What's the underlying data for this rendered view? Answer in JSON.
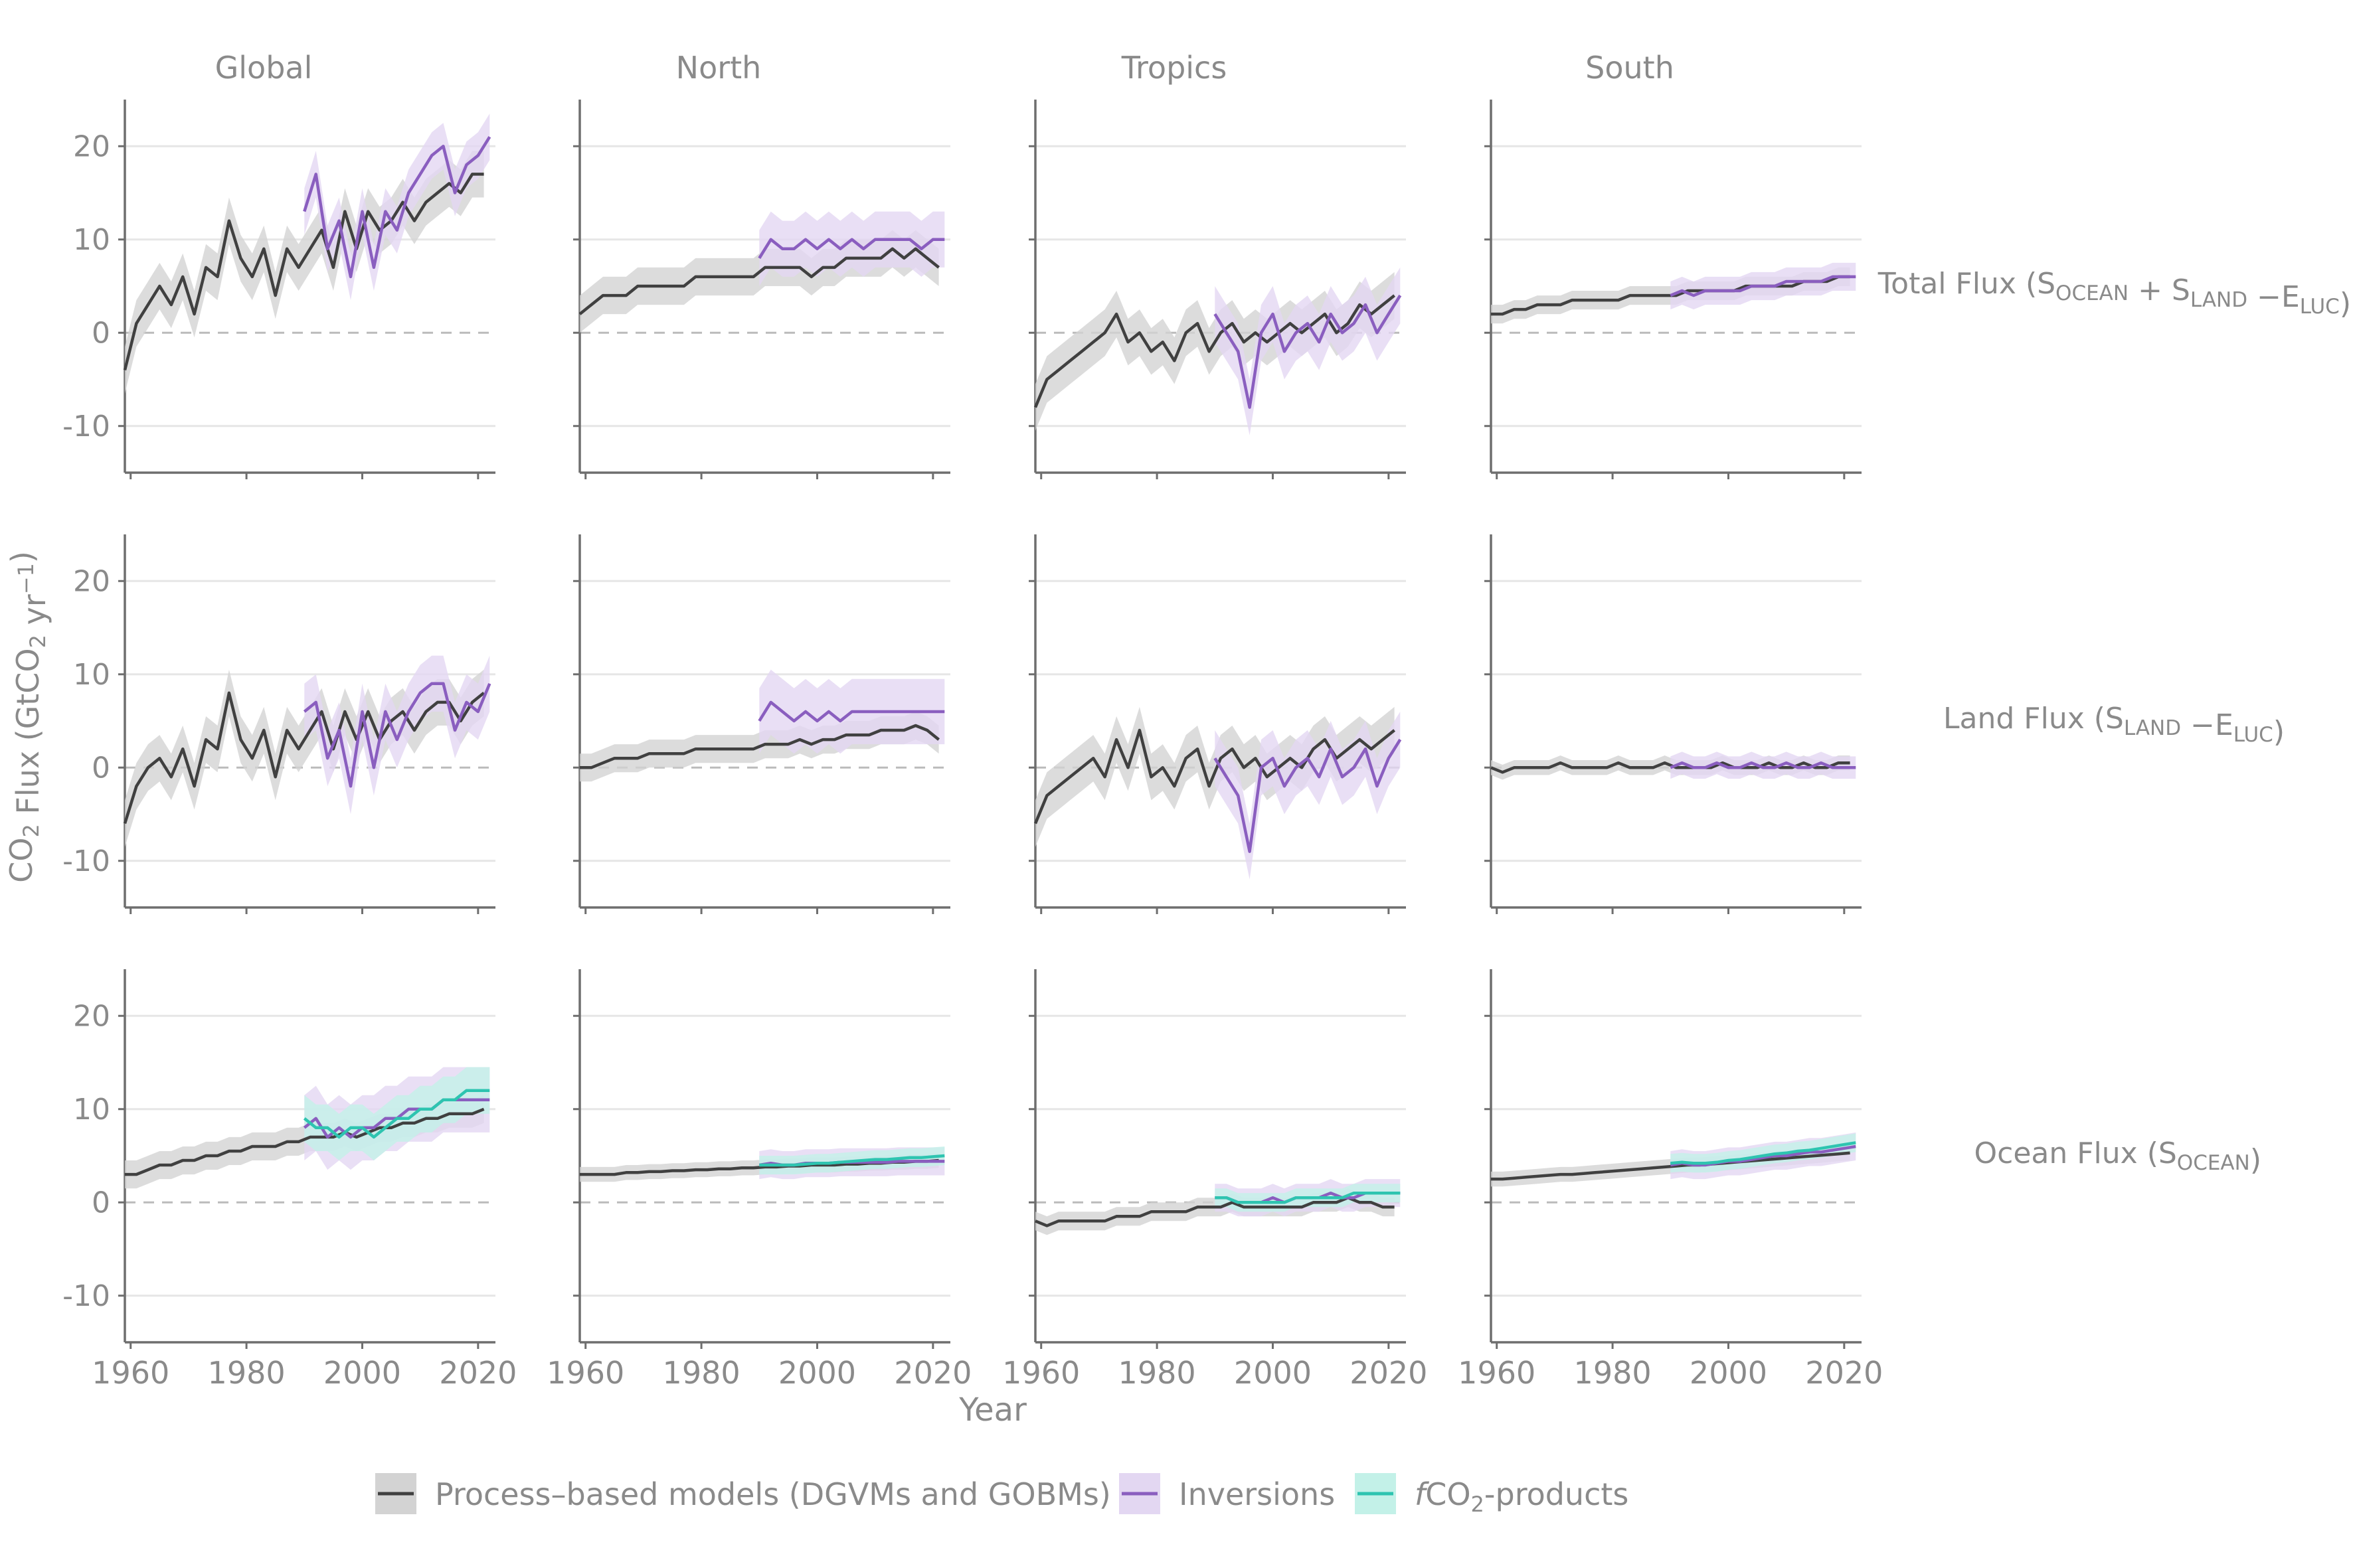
{
  "figure": {
    "column_titles": [
      "Global",
      "North",
      "Tropics",
      "South"
    ],
    "row_labels": [
      {
        "main": "Total Flux (S",
        "sub1": "OCEAN",
        "mid1": " + S",
        "sub2": "LAND",
        "mid2": " −E",
        "sub3": "LUC",
        "end": ")"
      },
      {
        "main": "Land Flux (S",
        "sub1": "LAND",
        "mid1": " −E",
        "sub2": "LUC",
        "end": ")"
      },
      {
        "main": "Ocean Flux (S",
        "sub1": "OCEAN",
        "end": ")"
      }
    ],
    "y_axis_label": {
      "pre": "CO",
      "sub": "2",
      "mid": " Flux (GtCO",
      "sub2": "2",
      "mid2": " yr",
      "sup": "−1",
      "end": ")"
    },
    "x_axis_label": "Year",
    "legend": [
      {
        "key": "process",
        "label": "Process–based models (DGVMs and GOBMs)",
        "color": "#404040",
        "fill": "#d3d3d3"
      },
      {
        "key": "inversions",
        "label": "Inversions",
        "color": "#8a5ebf",
        "fill": "#e3d7f2"
      },
      {
        "key": "fco2",
        "label_italic": "f",
        "label_pre": "CO",
        "label_sub": "2",
        "label_post": "-products",
        "color": "#2ec4b0",
        "fill": "#c3f1e8"
      }
    ]
  },
  "chart_data": {
    "type": "line",
    "layout": "facet-grid 3 rows x 4 columns",
    "x_ticks": [
      1960,
      1980,
      2000,
      2020
    ],
    "y_ticks": [
      20,
      10,
      0,
      -10
    ],
    "y_tick_labels": [
      "20",
      "10",
      "0",
      "-10"
    ],
    "xlim": [
      1959,
      2023
    ],
    "ylim": [
      -15,
      25
    ],
    "zero_line": "dashed",
    "grid": "horizontal major",
    "legend_placement": "bottom",
    "panels": [
      {
        "row": "Total",
        "col": "Global",
        "series": [
          {
            "name": "Process-based models (DGVMs and GOBMs)",
            "x0": 1959,
            "step": 2,
            "band": 2.5,
            "y": [
              -4,
              1,
              3,
              5,
              3,
              6,
              2,
              7,
              6,
              12,
              8,
              6,
              9,
              4,
              9,
              7,
              9,
              11,
              7,
              13,
              9,
              13,
              11,
              12,
              14,
              12,
              14,
              15,
              16,
              15,
              17,
              17
            ]
          },
          {
            "name": "Inversions",
            "x0": 1990,
            "step": 2,
            "band": 2.5,
            "y": [
              13,
              17,
              9,
              12,
              6,
              13,
              7,
              13,
              11,
              15,
              17,
              19,
              20,
              15,
              18,
              19,
              21
            ]
          }
        ]
      },
      {
        "row": "Total",
        "col": "North",
        "series": [
          {
            "name": "Process-based models (DGVMs and GOBMs)",
            "x0": 1959,
            "step": 2,
            "band": 2,
            "y": [
              2,
              3,
              4,
              4,
              4,
              5,
              5,
              5,
              5,
              5,
              6,
              6,
              6,
              6,
              6,
              6,
              7,
              7,
              7,
              7,
              6,
              7,
              7,
              8,
              8,
              8,
              8,
              9,
              8,
              9,
              8,
              7
            ]
          },
          {
            "name": "Inversions",
            "x0": 1990,
            "step": 2,
            "band": 3,
            "y": [
              8,
              10,
              9,
              9,
              10,
              9,
              10,
              9,
              10,
              9,
              10,
              10,
              10,
              10,
              9,
              10,
              10
            ]
          }
        ]
      },
      {
        "row": "Total",
        "col": "Tropics",
        "series": [
          {
            "name": "Process-based models (DGVMs and GOBMs)",
            "x0": 1959,
            "step": 2,
            "band": 2.5,
            "y": [
              -8,
              -5,
              -4,
              -3,
              -2,
              -1,
              0,
              2,
              -1,
              0,
              -2,
              -1,
              -3,
              0,
              1,
              -2,
              0,
              1,
              -1,
              0,
              -1,
              0,
              1,
              0,
              1,
              2,
              0,
              1,
              3,
              2,
              3,
              4
            ]
          },
          {
            "name": "Inversions",
            "x0": 1990,
            "step": 2,
            "band": 3,
            "y": [
              2,
              0,
              -2,
              -8,
              0,
              2,
              -2,
              0,
              1,
              -1,
              2,
              0,
              1,
              3,
              0,
              2,
              4
            ]
          }
        ]
      },
      {
        "row": "Total",
        "col": "South",
        "series": [
          {
            "name": "Process-based models (DGVMs and GOBMs)",
            "x0": 1959,
            "step": 2,
            "band": 1,
            "y": [
              2,
              2,
              2.5,
              2.5,
              3,
              3,
              3,
              3.5,
              3.5,
              3.5,
              3.5,
              3.5,
              4,
              4,
              4,
              4,
              4,
              4.5,
              4.5,
              4.5,
              4.5,
              4.5,
              5,
              5,
              5,
              5,
              5,
              5.5,
              5.5,
              5.5,
              6,
              6
            ]
          },
          {
            "name": "Inversions",
            "x0": 1990,
            "step": 2,
            "band": 1.5,
            "y": [
              4,
              4.5,
              4,
              4.5,
              4.5,
              4.5,
              4.5,
              5,
              5,
              5,
              5.5,
              5.5,
              5.5,
              5.5,
              6,
              6,
              6
            ]
          }
        ]
      },
      {
        "row": "Land",
        "col": "Global",
        "series": [
          {
            "name": "Process-based models (DGVMs and GOBMs)",
            "x0": 1959,
            "step": 2,
            "band": 2.5,
            "y": [
              -6,
              -2,
              0,
              1,
              -1,
              2,
              -2,
              3,
              2,
              8,
              3,
              1,
              4,
              -1,
              4,
              2,
              4,
              6,
              2,
              6,
              3,
              6,
              3,
              5,
              6,
              4,
              6,
              7,
              7,
              5,
              7,
              8
            ]
          },
          {
            "name": "Inversions",
            "x0": 1990,
            "step": 2,
            "band": 3,
            "y": [
              6,
              7,
              1,
              4,
              -2,
              6,
              0,
              6,
              3,
              6,
              8,
              9,
              9,
              4,
              7,
              6,
              9
            ]
          }
        ]
      },
      {
        "row": "Land",
        "col": "North",
        "series": [
          {
            "name": "Process-based models (DGVMs and GOBMs)",
            "x0": 1959,
            "step": 2,
            "band": 1.5,
            "y": [
              0,
              0,
              0.5,
              1,
              1,
              1,
              1.5,
              1.5,
              1.5,
              1.5,
              2,
              2,
              2,
              2,
              2,
              2,
              2.5,
              2.5,
              2.5,
              3,
              2.5,
              3,
              3,
              3.5,
              3.5,
              3.5,
              4,
              4,
              4,
              4.5,
              4,
              3
            ]
          },
          {
            "name": "Inversions",
            "x0": 1990,
            "step": 2,
            "band": 3.5,
            "y": [
              5,
              7,
              6,
              5,
              6,
              5,
              6,
              5,
              6,
              6,
              6,
              6,
              6,
              6,
              6,
              6,
              6
            ]
          }
        ]
      },
      {
        "row": "Land",
        "col": "Tropics",
        "series": [
          {
            "name": "Process-based models (DGVMs and GOBMs)",
            "x0": 1959,
            "step": 2,
            "band": 2.5,
            "y": [
              -6,
              -3,
              -2,
              -1,
              0,
              1,
              -1,
              3,
              0,
              4,
              -1,
              0,
              -2,
              1,
              2,
              -2,
              1,
              2,
              0,
              1,
              -1,
              0,
              1,
              0,
              2,
              3,
              1,
              2,
              3,
              2,
              3,
              4
            ]
          },
          {
            "name": "Inversions",
            "x0": 1990,
            "step": 2,
            "band": 3,
            "y": [
              1,
              -1,
              -3,
              -9,
              0,
              1,
              -2,
              0,
              1,
              -1,
              2,
              -1,
              0,
              2,
              -2,
              1,
              3
            ]
          }
        ]
      },
      {
        "row": "Land",
        "col": "South",
        "series": [
          {
            "name": "Process-based models (DGVMs and GOBMs)",
            "x0": 1959,
            "step": 2,
            "band": 0.8,
            "y": [
              0,
              -0.5,
              0,
              0,
              0,
              0,
              0.5,
              0,
              0,
              0,
              0,
              0.5,
              0,
              0,
              0,
              0.5,
              0,
              0,
              0,
              0,
              0.5,
              0,
              0,
              0,
              0.5,
              0,
              0,
              0.5,
              0,
              0,
              0.5,
              0.5
            ]
          },
          {
            "name": "Inversions",
            "x0": 1990,
            "step": 2,
            "band": 1.2,
            "y": [
              0,
              0.5,
              0,
              0,
              0.5,
              0,
              0,
              0.5,
              0,
              0,
              0.5,
              0,
              0,
              0.5,
              0,
              0,
              0
            ]
          }
        ]
      },
      {
        "row": "Ocean",
        "col": "Global",
        "series": [
          {
            "name": "Process-based models (DGVMs and GOBMs)",
            "x0": 1959,
            "step": 2,
            "band": 1.5,
            "y": [
              3,
              3,
              3.5,
              4,
              4,
              4.5,
              4.5,
              5,
              5,
              5.5,
              5.5,
              6,
              6,
              6,
              6.5,
              6.5,
              7,
              7,
              7,
              7.5,
              7,
              7.5,
              8,
              8,
              8.5,
              8.5,
              9,
              9,
              9.5,
              9.5,
              9.5,
              10
            ]
          },
          {
            "name": "Inversions",
            "x0": 1990,
            "step": 2,
            "band": 3.5,
            "y": [
              8,
              9,
              7,
              8,
              7,
              8,
              8,
              9,
              9,
              10,
              10,
              10,
              11,
              11,
              11,
              11,
              11
            ]
          },
          {
            "name": "fCO2-products",
            "x0": 1990,
            "step": 2,
            "band": 2.5,
            "y": [
              9,
              8,
              8,
              7,
              8,
              8,
              7,
              8,
              9,
              9,
              10,
              10,
              11,
              11,
              12,
              12,
              12
            ]
          }
        ]
      },
      {
        "row": "Ocean",
        "col": "North",
        "series": [
          {
            "name": "Process-based models (DGVMs and GOBMs)",
            "x0": 1959,
            "step": 2,
            "band": 0.8,
            "y": [
              3,
              3,
              3,
              3,
              3.2,
              3.2,
              3.3,
              3.3,
              3.4,
              3.4,
              3.5,
              3.5,
              3.6,
              3.6,
              3.7,
              3.7,
              3.8,
              3.8,
              3.9,
              3.9,
              4,
              4,
              4,
              4.1,
              4.1,
              4.2,
              4.2,
              4.3,
              4.3,
              4.4,
              4.4,
              4.5
            ]
          },
          {
            "name": "Inversions",
            "x0": 1990,
            "step": 2,
            "band": 1.5,
            "y": [
              4,
              4.2,
              4,
              4,
              4.2,
              4.2,
              4.2,
              4.3,
              4.3,
              4.3,
              4.3,
              4.3,
              4.4,
              4.4,
              4.4,
              4.4,
              4.4
            ]
          },
          {
            "name": "fCO2-products",
            "x0": 1990,
            "step": 2,
            "band": 1,
            "y": [
              4,
              4,
              4,
              4,
              4.1,
              4.2,
              4.2,
              4.3,
              4.4,
              4.5,
              4.6,
              4.6,
              4.7,
              4.8,
              4.8,
              4.9,
              5
            ]
          }
        ]
      },
      {
        "row": "Ocean",
        "col": "Tropics",
        "series": [
          {
            "name": "Process-based models (DGVMs and GOBMs)",
            "x0": 1959,
            "step": 2,
            "band": 1,
            "y": [
              -2,
              -2.5,
              -2,
              -2,
              -2,
              -2,
              -2,
              -1.5,
              -1.5,
              -1.5,
              -1,
              -1,
              -1,
              -1,
              -0.5,
              -0.5,
              -0.5,
              0,
              -0.5,
              -0.5,
              -0.5,
              -0.5,
              -0.5,
              -0.5,
              0,
              0,
              0,
              0.5,
              0,
              0,
              -0.5,
              -0.5
            ]
          },
          {
            "name": "Inversions",
            "x0": 1990,
            "step": 2,
            "band": 1.5,
            "y": [
              0.5,
              0.5,
              0,
              0,
              0,
              0.5,
              0,
              0.5,
              0.5,
              0.5,
              1,
              0.5,
              0.5,
              1,
              1,
              1,
              1
            ]
          },
          {
            "name": "fCO2-products",
            "x0": 1990,
            "step": 2,
            "band": 1,
            "y": [
              0.5,
              0.5,
              0,
              0,
              0,
              0,
              0,
              0.5,
              0.5,
              0.5,
              0.5,
              0.5,
              1,
              1,
              1,
              1,
              1
            ]
          }
        ]
      },
      {
        "row": "Ocean",
        "col": "South",
        "series": [
          {
            "name": "Process-based models (DGVMs and GOBMs)",
            "x0": 1959,
            "step": 2,
            "band": 0.8,
            "y": [
              2.5,
              2.5,
              2.6,
              2.7,
              2.8,
              2.9,
              3,
              3,
              3.1,
              3.2,
              3.3,
              3.4,
              3.5,
              3.6,
              3.7,
              3.8,
              3.9,
              4,
              4,
              4.1,
              4.2,
              4.3,
              4.4,
              4.5,
              4.6,
              4.7,
              4.8,
              4.9,
              5,
              5.1,
              5.2,
              5.3
            ]
          },
          {
            "name": "Inversions",
            "x0": 1990,
            "step": 2,
            "band": 1.5,
            "y": [
              4,
              4.2,
              4,
              4,
              4.2,
              4.4,
              4.4,
              4.6,
              4.8,
              5,
              5,
              5.2,
              5.4,
              5.4,
              5.6,
              5.8,
              6
            ]
          },
          {
            "name": "fCO2-products",
            "x0": 1990,
            "step": 2,
            "band": 1,
            "y": [
              4.2,
              4.3,
              4.2,
              4.2,
              4.3,
              4.5,
              4.6,
              4.8,
              5,
              5.2,
              5.3,
              5.5,
              5.6,
              5.8,
              6,
              6.2,
              6.4
            ]
          }
        ]
      }
    ]
  }
}
